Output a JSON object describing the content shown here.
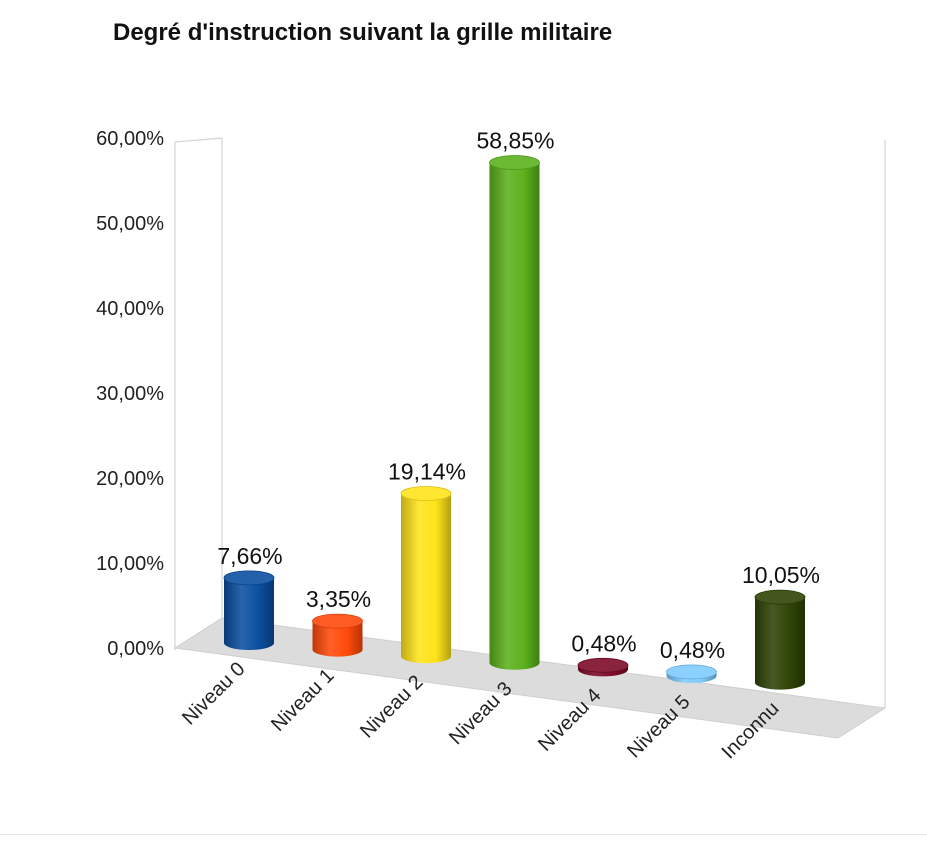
{
  "chart_data": {
    "type": "bar",
    "style": "3d-cylinder",
    "title": "Degré d'instruction suivant la grille militaire",
    "categories": [
      "Niveau 0",
      "Niveau 1",
      "Niveau 2",
      "Niveau 3",
      "Niveau 4",
      "Niveau 5",
      "Inconnu"
    ],
    "values": [
      7.66,
      3.35,
      19.14,
      58.85,
      0.48,
      0.48,
      10.05
    ],
    "value_labels": [
      "7,66%",
      "3,35%",
      "19,14%",
      "58,85%",
      "0,48%",
      "0,48%",
      "10,05%"
    ],
    "colors": [
      "#0b4fa0",
      "#ff4a0a",
      "#ffe31a",
      "#5cb11c",
      "#7d0a28",
      "#7ecbff",
      "#2f4406"
    ],
    "y_ticks": [
      "0,00%",
      "10,00%",
      "20,00%",
      "30,00%",
      "40,00%",
      "50,00%",
      "60,00%"
    ],
    "ylim": [
      0,
      60
    ],
    "xlabel": "",
    "ylabel": "",
    "legend": "none",
    "grid": false
  }
}
